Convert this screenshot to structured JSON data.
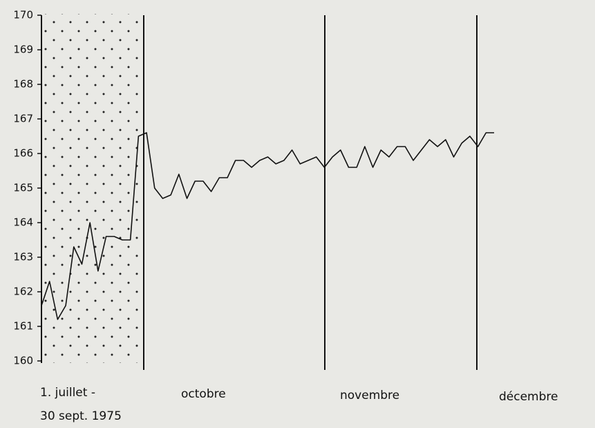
{
  "chart_data": {
    "type": "line",
    "categories": [
      null,
      null,
      null,
      null,
      null,
      null,
      null,
      null,
      null,
      null,
      null,
      null,
      null,
      null,
      null,
      null,
      null,
      null,
      null,
      null,
      null,
      null,
      null,
      null,
      null,
      null,
      null,
      null,
      null,
      null,
      null,
      null,
      null,
      null,
      null,
      null,
      null,
      null,
      null,
      null,
      null,
      null,
      null,
      null,
      null,
      null,
      null,
      null,
      null,
      null,
      null,
      null,
      null,
      null,
      null,
      null,
      null
    ],
    "series": [
      {
        "color": "#111111",
        "values": [
          161.6,
          162.3,
          161.2,
          161.6,
          163.3,
          162.8,
          164.0,
          162.6,
          163.6,
          163.6,
          163.5,
          163.5,
          166.5,
          166.6,
          165.0,
          164.7,
          164.8,
          165.4,
          164.7,
          165.2,
          165.2,
          164.9,
          165.3,
          165.3,
          165.8,
          165.8,
          165.6,
          165.8,
          165.9,
          165.7,
          165.8,
          166.1,
          165.7,
          165.8,
          165.9,
          165.6,
          165.9,
          166.1,
          165.6,
          165.6,
          166.2,
          165.6,
          166.1,
          165.9,
          166.2,
          166.2,
          165.8,
          166.1,
          166.4,
          166.2,
          166.4,
          165.9,
          166.3,
          166.5,
          166.2,
          166.6,
          166.6
        ]
      }
    ],
    "ylim": [
      160,
      170
    ],
    "yticks": [
      160,
      161,
      162,
      163,
      164,
      165,
      166,
      167,
      168,
      169,
      170
    ],
    "annotations": [
      "1. juillet -",
      "30 sept. 1975",
      "octobre",
      "novembre",
      "décembre"
    ]
  }
}
